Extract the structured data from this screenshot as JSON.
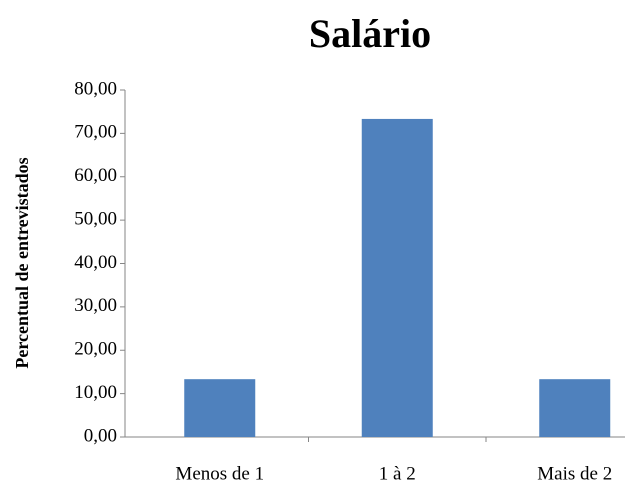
{
  "chart_data": {
    "type": "bar",
    "title": "Salário",
    "y_label": "Percentual de entrevistados",
    "categories": [
      "Menos de 1",
      "1 à 2",
      "Mais de 2"
    ],
    "values": [
      13.33,
      73.33,
      13.33
    ],
    "color": "#4f81bd",
    "ylim": [
      0,
      80
    ],
    "yticks": [
      {
        "value": 0,
        "label": "0,00"
      },
      {
        "value": 10,
        "label": "10,00"
      },
      {
        "value": 20,
        "label": "20,00"
      },
      {
        "value": 30,
        "label": "30,00"
      },
      {
        "value": 40,
        "label": "40,00"
      },
      {
        "value": 50,
        "label": "50,00"
      },
      {
        "value": 60,
        "label": "60,00"
      },
      {
        "value": 70,
        "label": "70,00"
      },
      {
        "value": 80,
        "label": "80,00"
      }
    ],
    "grid": false
  }
}
